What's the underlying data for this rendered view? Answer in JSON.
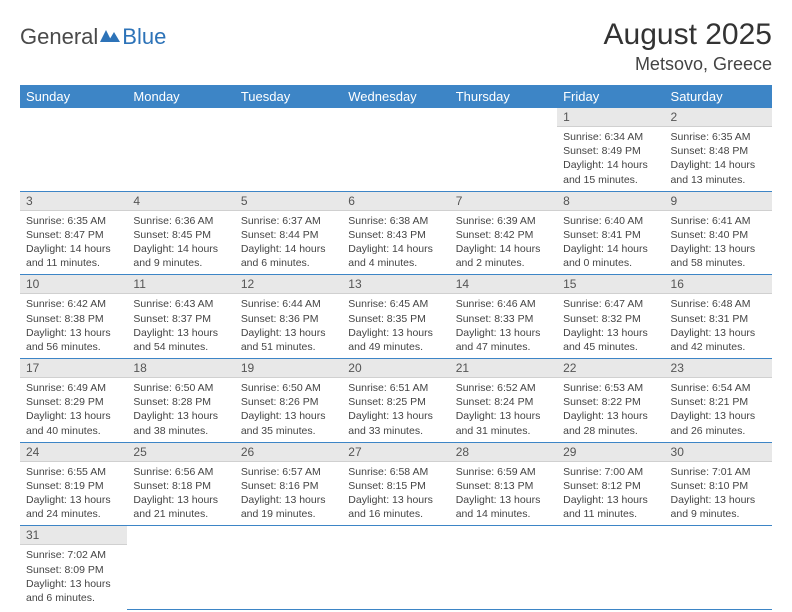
{
  "logo": {
    "part1": "General",
    "part2": "Blue"
  },
  "title": "August 2025",
  "location": "Metsovo, Greece",
  "colors": {
    "header_bg": "#3d85c6",
    "header_text": "#ffffff",
    "daynum_bg": "#e8e8e8",
    "row_border": "#3d85c6",
    "logo_blue": "#2d73b8",
    "body_text": "#444444"
  },
  "dayNames": [
    "Sunday",
    "Monday",
    "Tuesday",
    "Wednesday",
    "Thursday",
    "Friday",
    "Saturday"
  ],
  "weeks": [
    [
      null,
      null,
      null,
      null,
      null,
      {
        "n": "1",
        "sr": "Sunrise: 6:34 AM",
        "ss": "Sunset: 8:49 PM",
        "dl": "Daylight: 14 hours and 15 minutes."
      },
      {
        "n": "2",
        "sr": "Sunrise: 6:35 AM",
        "ss": "Sunset: 8:48 PM",
        "dl": "Daylight: 14 hours and 13 minutes."
      }
    ],
    [
      {
        "n": "3",
        "sr": "Sunrise: 6:35 AM",
        "ss": "Sunset: 8:47 PM",
        "dl": "Daylight: 14 hours and 11 minutes."
      },
      {
        "n": "4",
        "sr": "Sunrise: 6:36 AM",
        "ss": "Sunset: 8:45 PM",
        "dl": "Daylight: 14 hours and 9 minutes."
      },
      {
        "n": "5",
        "sr": "Sunrise: 6:37 AM",
        "ss": "Sunset: 8:44 PM",
        "dl": "Daylight: 14 hours and 6 minutes."
      },
      {
        "n": "6",
        "sr": "Sunrise: 6:38 AM",
        "ss": "Sunset: 8:43 PM",
        "dl": "Daylight: 14 hours and 4 minutes."
      },
      {
        "n": "7",
        "sr": "Sunrise: 6:39 AM",
        "ss": "Sunset: 8:42 PM",
        "dl": "Daylight: 14 hours and 2 minutes."
      },
      {
        "n": "8",
        "sr": "Sunrise: 6:40 AM",
        "ss": "Sunset: 8:41 PM",
        "dl": "Daylight: 14 hours and 0 minutes."
      },
      {
        "n": "9",
        "sr": "Sunrise: 6:41 AM",
        "ss": "Sunset: 8:40 PM",
        "dl": "Daylight: 13 hours and 58 minutes."
      }
    ],
    [
      {
        "n": "10",
        "sr": "Sunrise: 6:42 AM",
        "ss": "Sunset: 8:38 PM",
        "dl": "Daylight: 13 hours and 56 minutes."
      },
      {
        "n": "11",
        "sr": "Sunrise: 6:43 AM",
        "ss": "Sunset: 8:37 PM",
        "dl": "Daylight: 13 hours and 54 minutes."
      },
      {
        "n": "12",
        "sr": "Sunrise: 6:44 AM",
        "ss": "Sunset: 8:36 PM",
        "dl": "Daylight: 13 hours and 51 minutes."
      },
      {
        "n": "13",
        "sr": "Sunrise: 6:45 AM",
        "ss": "Sunset: 8:35 PM",
        "dl": "Daylight: 13 hours and 49 minutes."
      },
      {
        "n": "14",
        "sr": "Sunrise: 6:46 AM",
        "ss": "Sunset: 8:33 PM",
        "dl": "Daylight: 13 hours and 47 minutes."
      },
      {
        "n": "15",
        "sr": "Sunrise: 6:47 AM",
        "ss": "Sunset: 8:32 PM",
        "dl": "Daylight: 13 hours and 45 minutes."
      },
      {
        "n": "16",
        "sr": "Sunrise: 6:48 AM",
        "ss": "Sunset: 8:31 PM",
        "dl": "Daylight: 13 hours and 42 minutes."
      }
    ],
    [
      {
        "n": "17",
        "sr": "Sunrise: 6:49 AM",
        "ss": "Sunset: 8:29 PM",
        "dl": "Daylight: 13 hours and 40 minutes."
      },
      {
        "n": "18",
        "sr": "Sunrise: 6:50 AM",
        "ss": "Sunset: 8:28 PM",
        "dl": "Daylight: 13 hours and 38 minutes."
      },
      {
        "n": "19",
        "sr": "Sunrise: 6:50 AM",
        "ss": "Sunset: 8:26 PM",
        "dl": "Daylight: 13 hours and 35 minutes."
      },
      {
        "n": "20",
        "sr": "Sunrise: 6:51 AM",
        "ss": "Sunset: 8:25 PM",
        "dl": "Daylight: 13 hours and 33 minutes."
      },
      {
        "n": "21",
        "sr": "Sunrise: 6:52 AM",
        "ss": "Sunset: 8:24 PM",
        "dl": "Daylight: 13 hours and 31 minutes."
      },
      {
        "n": "22",
        "sr": "Sunrise: 6:53 AM",
        "ss": "Sunset: 8:22 PM",
        "dl": "Daylight: 13 hours and 28 minutes."
      },
      {
        "n": "23",
        "sr": "Sunrise: 6:54 AM",
        "ss": "Sunset: 8:21 PM",
        "dl": "Daylight: 13 hours and 26 minutes."
      }
    ],
    [
      {
        "n": "24",
        "sr": "Sunrise: 6:55 AM",
        "ss": "Sunset: 8:19 PM",
        "dl": "Daylight: 13 hours and 24 minutes."
      },
      {
        "n": "25",
        "sr": "Sunrise: 6:56 AM",
        "ss": "Sunset: 8:18 PM",
        "dl": "Daylight: 13 hours and 21 minutes."
      },
      {
        "n": "26",
        "sr": "Sunrise: 6:57 AM",
        "ss": "Sunset: 8:16 PM",
        "dl": "Daylight: 13 hours and 19 minutes."
      },
      {
        "n": "27",
        "sr": "Sunrise: 6:58 AM",
        "ss": "Sunset: 8:15 PM",
        "dl": "Daylight: 13 hours and 16 minutes."
      },
      {
        "n": "28",
        "sr": "Sunrise: 6:59 AM",
        "ss": "Sunset: 8:13 PM",
        "dl": "Daylight: 13 hours and 14 minutes."
      },
      {
        "n": "29",
        "sr": "Sunrise: 7:00 AM",
        "ss": "Sunset: 8:12 PM",
        "dl": "Daylight: 13 hours and 11 minutes."
      },
      {
        "n": "30",
        "sr": "Sunrise: 7:01 AM",
        "ss": "Sunset: 8:10 PM",
        "dl": "Daylight: 13 hours and 9 minutes."
      }
    ],
    [
      {
        "n": "31",
        "sr": "Sunrise: 7:02 AM",
        "ss": "Sunset: 8:09 PM",
        "dl": "Daylight: 13 hours and 6 minutes."
      },
      null,
      null,
      null,
      null,
      null,
      null
    ]
  ]
}
